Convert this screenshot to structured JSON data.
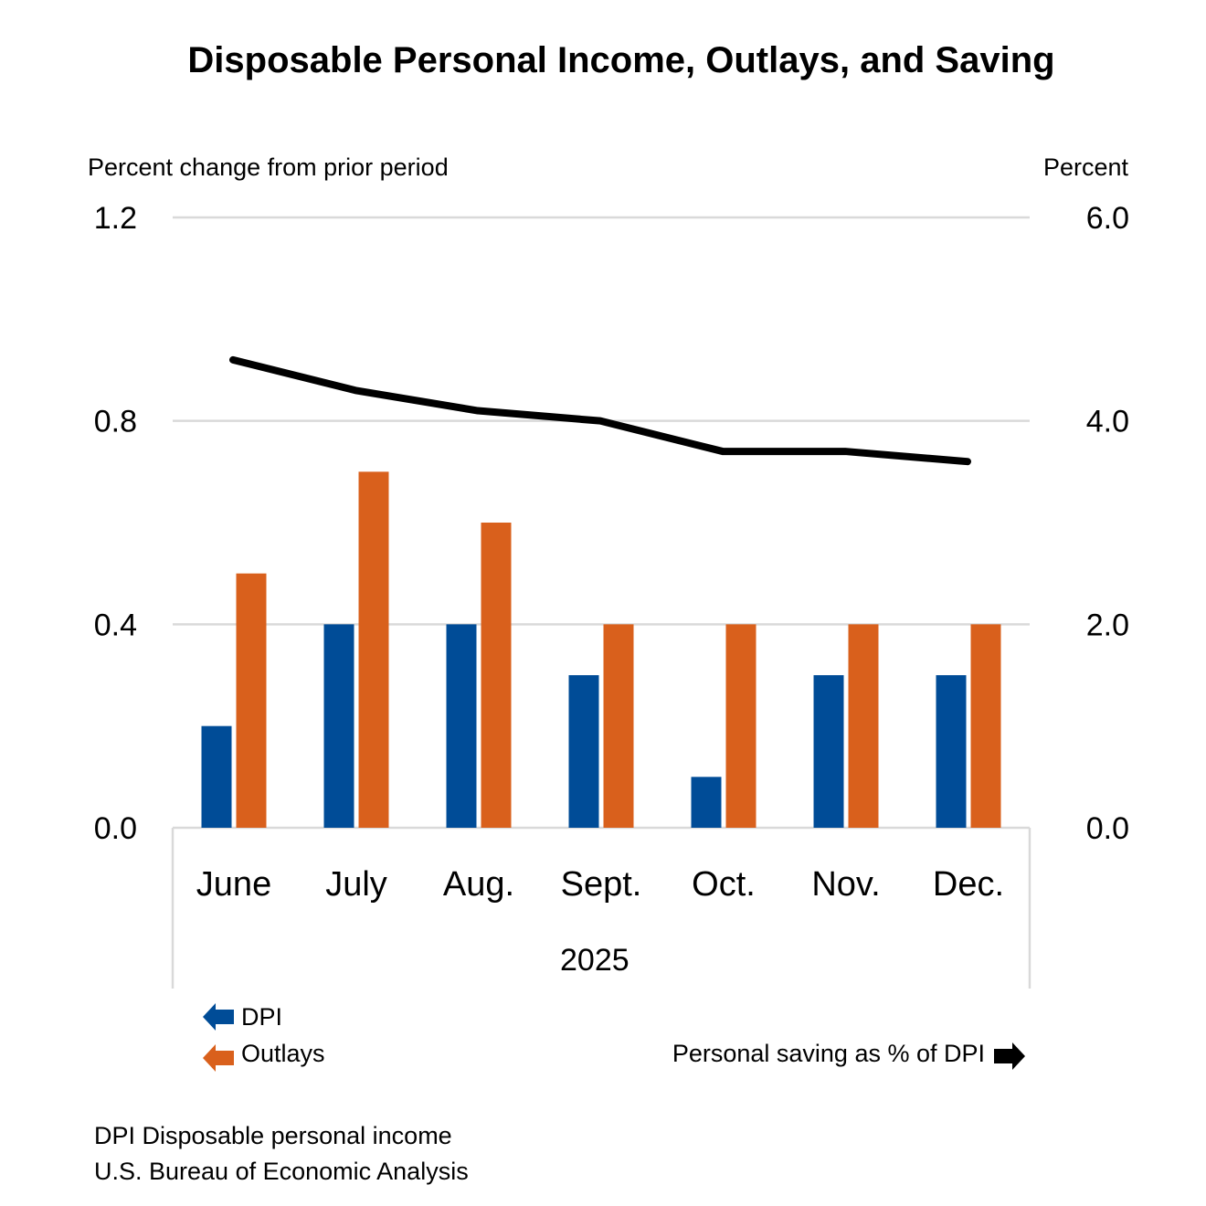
{
  "chart_data": {
    "type": "bar+line",
    "title": "Disposable Personal Income, Outlays, and Saving",
    "ylabel_left": "Percent change from prior period",
    "ylabel_right": "Percent",
    "ylim_left": [
      0,
      1.2
    ],
    "ylim_right": [
      0,
      6.0
    ],
    "yticks_left": [
      "0.0",
      "0.4",
      "0.8",
      "1.2"
    ],
    "yticks_right": [
      "0.0",
      "2.0",
      "4.0",
      "6.0"
    ],
    "categories": [
      "June",
      "July",
      "Aug.",
      "Sept.",
      "Oct.",
      "Nov.",
      "Dec."
    ],
    "year_label": "2025",
    "grid": true,
    "series": [
      {
        "name": "DPI",
        "type": "bar",
        "axis": "left",
        "color": "#004C97",
        "values": [
          0.2,
          0.4,
          0.4,
          0.3,
          0.1,
          0.3,
          0.3
        ]
      },
      {
        "name": "Outlays",
        "type": "bar",
        "axis": "left",
        "color": "#D9601C",
        "values": [
          0.5,
          0.7,
          0.6,
          0.4,
          0.4,
          0.4,
          0.4
        ]
      },
      {
        "name": "Personal saving as % of DPI",
        "type": "line",
        "axis": "right",
        "color": "#000000",
        "values": [
          4.6,
          4.3,
          4.1,
          4.0,
          3.7,
          3.7,
          3.6
        ]
      }
    ],
    "legend": "bottom"
  },
  "notes": [
    "DPI Disposable personal income",
    "U.S. Bureau of Economic Analysis"
  ]
}
